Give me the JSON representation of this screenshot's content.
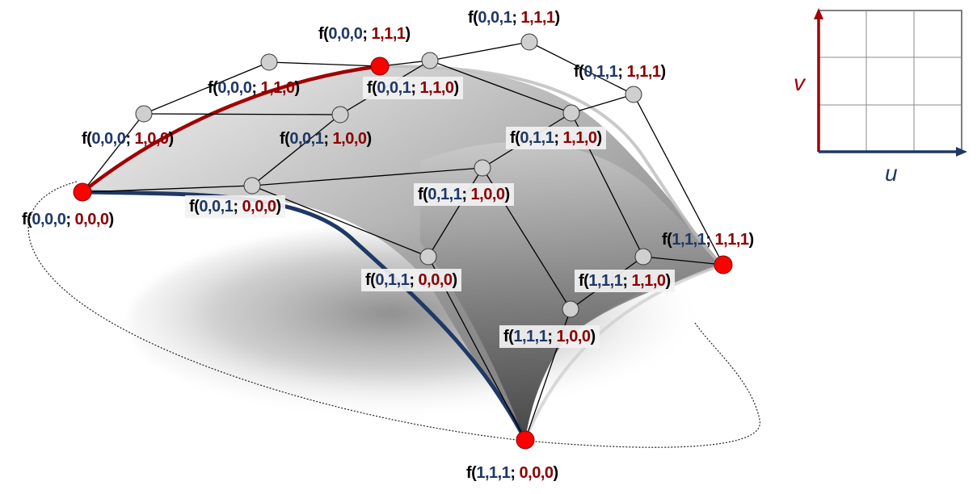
{
  "colors": {
    "u_blue": "#1f3864",
    "v_red": "#a00000",
    "control_point_gray": "#c8c8c8",
    "corner_point_red": "#ff0000"
  },
  "labels": [
    {
      "id": "p_000_111",
      "uv": "0,0,0",
      "ctl": "1,1,1"
    },
    {
      "id": "p_001_111",
      "uv": "0,0,1",
      "ctl": "1,1,1"
    },
    {
      "id": "p_011_111",
      "uv": "0,1,1",
      "ctl": "1,1,1"
    },
    {
      "id": "p_000_110",
      "uv": "0,0,0",
      "ctl": "1,1,0"
    },
    {
      "id": "p_001_110",
      "uv": "0,0,1",
      "ctl": "1,1,0"
    },
    {
      "id": "p_000_100",
      "uv": "0,0,0",
      "ctl": "1,0,0"
    },
    {
      "id": "p_001_100",
      "uv": "0,0,1",
      "ctl": "1,0,0"
    },
    {
      "id": "p_011_110",
      "uv": "0,1,1",
      "ctl": "1,1,0"
    },
    {
      "id": "p_011_100",
      "uv": "0,1,1",
      "ctl": "1,0,0"
    },
    {
      "id": "p_000_000",
      "uv": "0,0,0",
      "ctl": "0,0,0"
    },
    {
      "id": "p_001_000",
      "uv": "0,0,1",
      "ctl": "0,0,0"
    },
    {
      "id": "p_111_111",
      "uv": "1,1,1",
      "ctl": "1,1,1"
    },
    {
      "id": "p_011_000",
      "uv": "0,1,1",
      "ctl": "0,0,0"
    },
    {
      "id": "p_111_110",
      "uv": "1,1,1",
      "ctl": "1,1,0"
    },
    {
      "id": "p_111_100",
      "uv": "1,1,1",
      "ctl": "1,0,0"
    },
    {
      "id": "p_111_000",
      "uv": "1,1,1",
      "ctl": "0,0,0"
    }
  ],
  "parameter_domain": {
    "u_label": "u",
    "v_label": "v",
    "grid_divisions": 3
  }
}
